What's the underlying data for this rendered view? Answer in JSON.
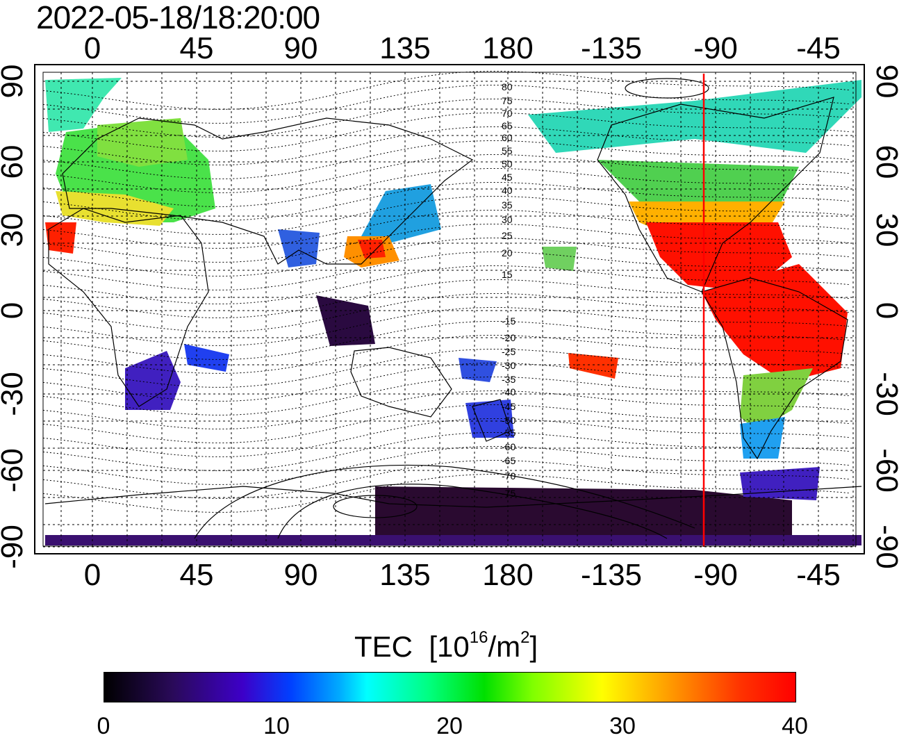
{
  "title": "2022-05-18/18:20:00",
  "axes": {
    "lon_ticks": [
      "0",
      "45",
      "90",
      "135",
      "180",
      "-135",
      "-90",
      "-45"
    ],
    "lat_ticks": [
      "90",
      "60",
      "30",
      "0",
      "-30",
      "-60",
      "-90"
    ]
  },
  "contour_labels": [
    "80",
    "75",
    "70",
    "65",
    "60",
    "55",
    "50",
    "45",
    "40",
    "35",
    "30",
    "25",
    "20",
    "15",
    "-15",
    "-20",
    "-25",
    "-30",
    "-35",
    "-40",
    "-45",
    "-50",
    "-55",
    "-60",
    "-65",
    "-70",
    "-75"
  ],
  "colorbar": {
    "title": "TEC",
    "unit_prefix": "[10",
    "unit_exp": "16",
    "unit_mid": "/m",
    "unit_exp2": "2",
    "unit_suffix": "]",
    "ticks": [
      "0",
      "10",
      "20",
      "30",
      "40"
    ],
    "range": [
      0,
      40
    ],
    "colors": [
      "#000000",
      "#3d00c8",
      "#00ffff",
      "#00e000",
      "#ffff00",
      "#ff0000"
    ]
  },
  "map": {
    "terminator_color": "#ff0000",
    "terminator_lon": -96
  }
}
